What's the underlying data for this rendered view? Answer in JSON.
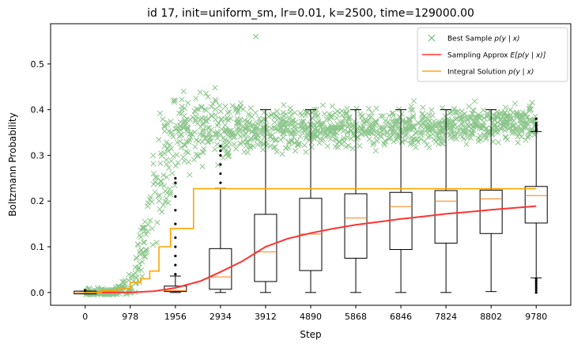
{
  "chart_data": {
    "type": "scatter",
    "title": "id 17, init=uniform_sm, lr=0.01, k=2500, time=129000.00",
    "xlabel": "Step",
    "ylabel": "Boltzmann Probability",
    "xlim": [
      -750,
      10530
    ],
    "ylim": [
      -0.028,
      0.588
    ],
    "xticks": [
      0,
      978,
      1956,
      2934,
      3912,
      4890,
      5868,
      6846,
      7824,
      8802,
      9780
    ],
    "xtick_labels": [
      "0",
      "978",
      "1956",
      "2934",
      "3912",
      "4890",
      "5868",
      "6846",
      "7824",
      "8802",
      "9780"
    ],
    "yticks": [
      0.0,
      0.1,
      0.2,
      0.3,
      0.4,
      0.5
    ],
    "ytick_labels": [
      "0.0",
      "0.1",
      "0.2",
      "0.3",
      "0.4",
      "0.5"
    ],
    "legend": {
      "placement": "top-right",
      "entries": [
        {
          "label": "Best Sample p(y | x)",
          "label_plain": "Best Sample ",
          "label_math": "p(y | x)",
          "color": "#008000",
          "marker": "x"
        },
        {
          "label": "Sampling Approx E[p(y | x)]",
          "label_plain": "Sampling Approx ",
          "label_math": "E[p(y | x)]",
          "color": "#ff3333",
          "marker": "line"
        },
        {
          "label": "Integral Solution p(y | x)",
          "label_plain": "Integral Solution ",
          "label_math": "p(y | x)",
          "color": "#ffa500",
          "marker": "line"
        }
      ]
    },
    "series": [
      {
        "name": "Best Sample p(y | x)",
        "kind": "scatter-band",
        "color": "#008000",
        "band_x": [
          0,
          600,
          978,
          1100,
          1300,
          1500,
          1700,
          1956,
          2200,
          2500,
          2934,
          3500,
          4500,
          5500,
          6500,
          7500,
          8500,
          9780
        ],
        "band_center": [
          0.0,
          0.0,
          0.02,
          0.06,
          0.12,
          0.19,
          0.27,
          0.33,
          0.36,
          0.36,
          0.355,
          0.355,
          0.357,
          0.36,
          0.362,
          0.365,
          0.368,
          0.37
        ],
        "band_spread": [
          0.004,
          0.004,
          0.015,
          0.03,
          0.05,
          0.06,
          0.06,
          0.05,
          0.04,
          0.035,
          0.03,
          0.025,
          0.022,
          0.02,
          0.02,
          0.02,
          0.02,
          0.02
        ],
        "max_point": {
          "x": 3700,
          "y": 0.56
        }
      },
      {
        "name": "Sampling Approx E[p(y | x)]",
        "kind": "line",
        "color": "#ff3333",
        "x": [
          0,
          978,
          1500,
          1956,
          2500,
          2934,
          3400,
          3912,
          4400,
          4890,
          5400,
          5868,
          6400,
          6846,
          7400,
          7824,
          8400,
          8802,
          9300,
          9780
        ],
        "y": [
          0.0,
          0.0,
          0.003,
          0.01,
          0.025,
          0.045,
          0.068,
          0.1,
          0.118,
          0.13,
          0.14,
          0.148,
          0.155,
          0.161,
          0.167,
          0.172,
          0.177,
          0.181,
          0.185,
          0.189
        ]
      },
      {
        "name": "Integral Solution p(y | x)",
        "kind": "step",
        "color": "#ffa500",
        "x": [
          0,
          350,
          700,
          978,
          1200,
          1400,
          1600,
          1850,
          2100,
          2350,
          2934,
          9780
        ],
        "y": [
          0.0,
          0.005,
          0.008,
          0.022,
          0.03,
          0.047,
          0.1,
          0.14,
          0.14,
          0.227,
          0.227,
          0.227
        ]
      }
    ],
    "boxplots": [
      {
        "x": 0,
        "q1": -0.003,
        "median": 0.0,
        "q3": 0.003,
        "whisker_low": -0.003,
        "whisker_high": 0.003,
        "fliers": [
          0.004,
          0.005
        ]
      },
      {
        "x": 1956,
        "q1": 0.002,
        "median": 0.004,
        "q3": 0.014,
        "whisker_low": 0.0,
        "whisker_high": 0.036,
        "fliers": [
          0.04,
          0.06,
          0.08,
          0.1,
          0.12,
          0.15,
          0.18,
          0.21,
          0.24,
          0.25
        ]
      },
      {
        "x": 2934,
        "q1": 0.007,
        "median": 0.034,
        "q3": 0.096,
        "whisker_low": 0.0,
        "whisker_high": 0.228,
        "fliers": [
          0.24,
          0.26,
          0.28,
          0.3,
          0.31,
          0.32
        ]
      },
      {
        "x": 3912,
        "q1": 0.024,
        "median": 0.089,
        "q3": 0.171,
        "whisker_low": 0.0,
        "whisker_high": 0.4,
        "fliers": []
      },
      {
        "x": 4890,
        "q1": 0.048,
        "median": 0.128,
        "q3": 0.206,
        "whisker_low": 0.0,
        "whisker_high": 0.4,
        "fliers": []
      },
      {
        "x": 5868,
        "q1": 0.075,
        "median": 0.163,
        "q3": 0.216,
        "whisker_low": 0.0,
        "whisker_high": 0.4,
        "fliers": []
      },
      {
        "x": 6846,
        "q1": 0.094,
        "median": 0.188,
        "q3": 0.219,
        "whisker_low": 0.0,
        "whisker_high": 0.4,
        "fliers": []
      },
      {
        "x": 7824,
        "q1": 0.108,
        "median": 0.2,
        "q3": 0.223,
        "whisker_low": 0.0,
        "whisker_high": 0.4,
        "fliers": []
      },
      {
        "x": 8802,
        "q1": 0.129,
        "median": 0.205,
        "q3": 0.224,
        "whisker_low": 0.002,
        "whisker_high": 0.4,
        "fliers": []
      },
      {
        "x": 9780,
        "q1": 0.152,
        "median": 0.212,
        "q3": 0.232,
        "whisker_low": 0.032,
        "whisker_high": 0.352,
        "fliers": [
          0.0,
          0.005,
          0.01,
          0.015,
          0.02,
          0.025,
          0.03,
          0.355,
          0.36,
          0.365,
          0.37,
          0.38
        ]
      }
    ],
    "box_color": "#000000",
    "median_color": "#ff7f0e",
    "grid": false
  }
}
